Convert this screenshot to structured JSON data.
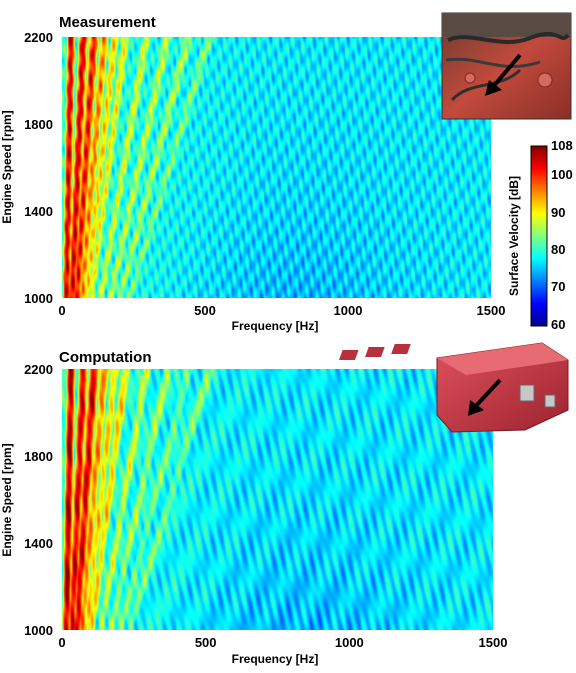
{
  "chart_data": [
    {
      "type": "heatmap",
      "title": "Measurement",
      "xlabel": "Frequency [Hz]",
      "ylabel": "Engine Speed [rpm]",
      "xlim": [
        0,
        1500
      ],
      "ylim": [
        1000,
        2200
      ],
      "xticks": [
        0,
        500,
        1000,
        1500
      ],
      "yticks": [
        1000,
        1400,
        1800,
        2200
      ],
      "inset": "photo-engine-icon",
      "grid": false,
      "ridges": [
        {
          "freq_at_2200": 30,
          "level_db": 104
        },
        {
          "freq_at_2200": 73,
          "level_db": 104
        },
        {
          "freq_at_2200": 110,
          "level_db": 102
        },
        {
          "freq_at_2200": 147,
          "level_db": 96
        },
        {
          "freq_at_2200": 183,
          "level_db": 92
        },
        {
          "freq_at_2200": 220,
          "level_db": 90
        },
        {
          "freq_at_2200": 293,
          "level_db": 88
        },
        {
          "freq_at_2200": 367,
          "level_db": 87
        },
        {
          "freq_at_2200": 440,
          "level_db": 86
        },
        {
          "freq_at_2200": 513,
          "level_db": 84
        }
      ]
    },
    {
      "type": "heatmap",
      "title": "Computation",
      "xlabel": "Frequency [Hz]",
      "ylabel": "Engine Speed [rpm]",
      "xlim": [
        0,
        1500
      ],
      "ylim": [
        1000,
        2200
      ],
      "xticks": [
        0,
        500,
        1000,
        1500
      ],
      "yticks": [
        1000,
        1400,
        1800,
        2200
      ],
      "inset": "engine-block-model-icon",
      "grid": false,
      "ridges": [
        {
          "freq_at_2200": 30,
          "level_db": 106
        },
        {
          "freq_at_2200": 73,
          "level_db": 104
        },
        {
          "freq_at_2200": 110,
          "level_db": 104
        },
        {
          "freq_at_2200": 147,
          "level_db": 96
        },
        {
          "freq_at_2200": 183,
          "level_db": 92
        },
        {
          "freq_at_2200": 220,
          "level_db": 92
        },
        {
          "freq_at_2200": 293,
          "level_db": 88
        },
        {
          "freq_at_2200": 367,
          "level_db": 86
        },
        {
          "freq_at_2200": 440,
          "level_db": 84
        },
        {
          "freq_at_2200": 513,
          "level_db": 84
        }
      ]
    }
  ],
  "colorbar": {
    "label": "Surface Velocity [dB]",
    "range": [
      60,
      108
    ],
    "ticks": [
      "108",
      "100",
      "90",
      "80",
      "70",
      "60"
    ],
    "colormap": "jet"
  },
  "colors": {
    "dark_red": "#800000",
    "red": "#ff0000",
    "yellow": "#ffff00",
    "cyan": "#00ffff",
    "blue": "#0000ff",
    "dark_blue": "#00008f"
  }
}
